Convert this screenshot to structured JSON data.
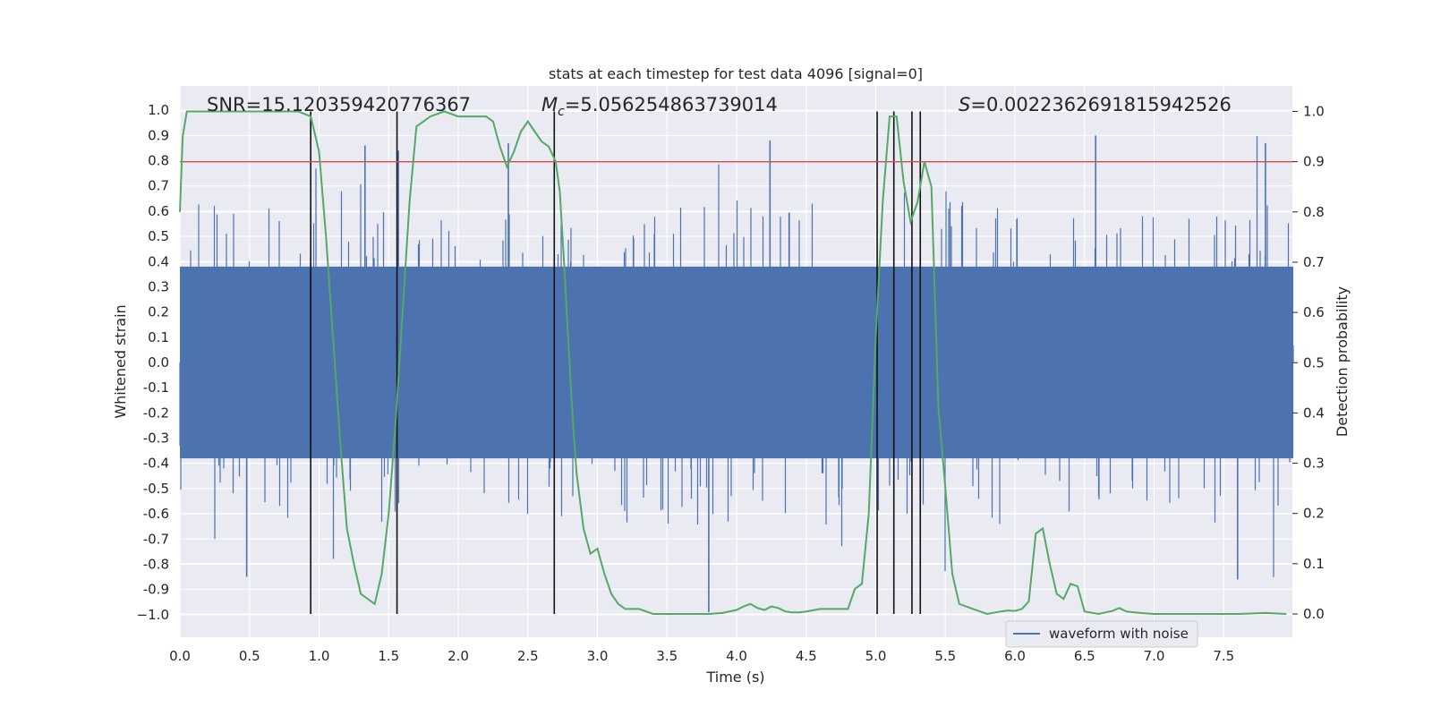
{
  "chart_data": {
    "type": "line",
    "title": "stats at each timestep for test data 4096 [signal=0]",
    "xlabel": "Time (s)",
    "ylabel_left": "Whitened strain",
    "ylabel_right": "Detection probability",
    "xlim": [
      0.0,
      8.0
    ],
    "ylim_left": [
      -1.1,
      1.1
    ],
    "ylim_right": [
      -0.05,
      1.05
    ],
    "grid": true,
    "x_ticks": [
      "0.0",
      "0.5",
      "1.0",
      "1.5",
      "2.0",
      "2.5",
      "3.0",
      "3.5",
      "4.0",
      "4.5",
      "5.0",
      "5.5",
      "6.0",
      "6.5",
      "7.0",
      "7.5"
    ],
    "y_left_ticks": [
      "1.0",
      "0.9",
      "0.8",
      "0.7",
      "0.6",
      "0.5",
      "0.4",
      "0.3",
      "0.2",
      "0.1",
      "0.0",
      "-0.1",
      "-0.2",
      "-0.3",
      "-0.4",
      "-0.5",
      "-0.6",
      "-0.7",
      "-0.8",
      "-0.9",
      "−1.0"
    ],
    "y_right_ticks": [
      "1.0",
      "0.9",
      "0.8",
      "0.7",
      "0.6",
      "0.5",
      "0.4",
      "0.3",
      "0.2",
      "0.1",
      "0.0"
    ],
    "annotations": {
      "snr": "SNR=15.120359420776367",
      "mc_symbol": "M",
      "mc_sub": "c",
      "mc_value": "=5.056254863739014",
      "s_symbol": "S",
      "s_value": "=0.0022362691815942526"
    },
    "legend": {
      "label": "waveform with noise",
      "placement": "lower-right"
    },
    "threshold": {
      "axis": "right",
      "value": 0.9
    },
    "vertical_lines": [
      0.94,
      1.56,
      2.69,
      5.01,
      5.13,
      5.26,
      5.32
    ],
    "series": [
      {
        "name": "waveform with noise",
        "axis": "left",
        "kind": "noise",
        "core_amplitude": 0.38,
        "typical_peak": 0.62,
        "max_peak": 0.9,
        "outliers": [
          {
            "x": 0.48,
            "y": -0.85
          },
          {
            "x": 1.33,
            "y": 0.86
          },
          {
            "x": 1.57,
            "y": 0.84
          },
          {
            "x": 2.36,
            "y": 0.87
          },
          {
            "x": 3.8,
            "y": -0.99
          },
          {
            "x": 4.24,
            "y": 0.88
          },
          {
            "x": 6.58,
            "y": 0.9
          },
          {
            "x": 7.6,
            "y": -0.86
          },
          {
            "x": 7.8,
            "y": 0.87
          }
        ]
      },
      {
        "name": "detection probability",
        "axis": "right",
        "x": [
          0.0,
          0.02,
          0.05,
          0.1,
          0.3,
          0.5,
          0.7,
          0.85,
          0.94,
          1.0,
          1.05,
          1.1,
          1.15,
          1.2,
          1.25,
          1.3,
          1.35,
          1.4,
          1.45,
          1.5,
          1.55,
          1.6,
          1.65,
          1.7,
          1.8,
          1.9,
          2.0,
          2.1,
          2.2,
          2.25,
          2.3,
          2.35,
          2.4,
          2.45,
          2.5,
          2.55,
          2.6,
          2.65,
          2.7,
          2.73,
          2.76,
          2.79,
          2.82,
          2.85,
          2.9,
          2.95,
          3.0,
          3.05,
          3.1,
          3.15,
          3.2,
          3.3,
          3.4,
          3.5,
          3.6,
          3.7,
          3.8,
          3.9,
          4.0,
          4.05,
          4.1,
          4.15,
          4.2,
          4.25,
          4.3,
          4.35,
          4.4,
          4.45,
          4.5,
          4.6,
          4.7,
          4.8,
          4.85,
          4.9,
          4.95,
          5.0,
          5.05,
          5.1,
          5.15,
          5.2,
          5.25,
          5.3,
          5.35,
          5.4,
          5.45,
          5.5,
          5.55,
          5.6,
          5.7,
          5.8,
          5.9,
          5.95,
          6.0,
          6.05,
          6.1,
          6.15,
          6.2,
          6.25,
          6.3,
          6.35,
          6.4,
          6.45,
          6.5,
          6.6,
          6.7,
          6.75,
          6.8,
          6.9,
          7.0,
          7.2,
          7.4,
          7.6,
          7.8,
          7.95
        ],
        "values": [
          0.8,
          0.95,
          1.0,
          1.0,
          1.0,
          1.0,
          1.0,
          1.0,
          0.99,
          0.92,
          0.75,
          0.55,
          0.35,
          0.17,
          0.1,
          0.04,
          0.03,
          0.02,
          0.08,
          0.2,
          0.38,
          0.6,
          0.82,
          0.97,
          0.99,
          1.0,
          0.99,
          0.99,
          0.99,
          0.98,
          0.93,
          0.89,
          0.92,
          0.96,
          0.98,
          0.96,
          0.94,
          0.93,
          0.9,
          0.84,
          0.7,
          0.55,
          0.4,
          0.28,
          0.17,
          0.12,
          0.13,
          0.08,
          0.04,
          0.02,
          0.01,
          0.01,
          0.0,
          0.0,
          0.0,
          0.0,
          0.0,
          0.002,
          0.008,
          0.015,
          0.02,
          0.012,
          0.008,
          0.015,
          0.012,
          0.005,
          0.003,
          0.003,
          0.005,
          0.01,
          0.01,
          0.01,
          0.05,
          0.06,
          0.2,
          0.55,
          0.82,
          0.99,
          0.99,
          0.86,
          0.78,
          0.82,
          0.9,
          0.85,
          0.41,
          0.25,
          0.08,
          0.02,
          0.01,
          0.0,
          0.005,
          0.007,
          0.006,
          0.01,
          0.025,
          0.16,
          0.17,
          0.1,
          0.04,
          0.03,
          0.06,
          0.055,
          0.005,
          0.0,
          0.006,
          0.012,
          0.005,
          0.002,
          0.0,
          0.0,
          0.0,
          0.0,
          0.002,
          0.0
        ]
      }
    ]
  }
}
